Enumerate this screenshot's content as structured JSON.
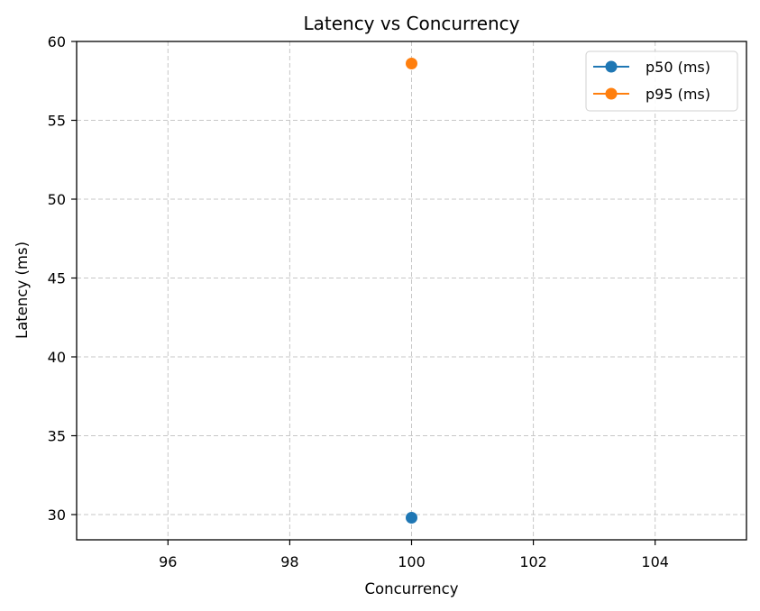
{
  "chart_data": {
    "type": "line",
    "title": "Latency vs Concurrency",
    "xlabel": "Concurrency",
    "ylabel": "Latency (ms)",
    "xlim": [
      94.5,
      105.5
    ],
    "ylim": [
      28.4,
      60.0
    ],
    "xticks": [
      96,
      98,
      100,
      102,
      104
    ],
    "yticks": [
      30,
      35,
      40,
      45,
      50,
      55,
      60
    ],
    "grid": true,
    "legend_position": "top-right",
    "series": [
      {
        "name": "p50 (ms)",
        "color": "#1f77b4",
        "marker": "circle",
        "x": [
          100
        ],
        "y": [
          29.8
        ]
      },
      {
        "name": "p95 (ms)",
        "color": "#ff7f0e",
        "marker": "circle",
        "x": [
          100
        ],
        "y": [
          58.6
        ]
      }
    ]
  }
}
